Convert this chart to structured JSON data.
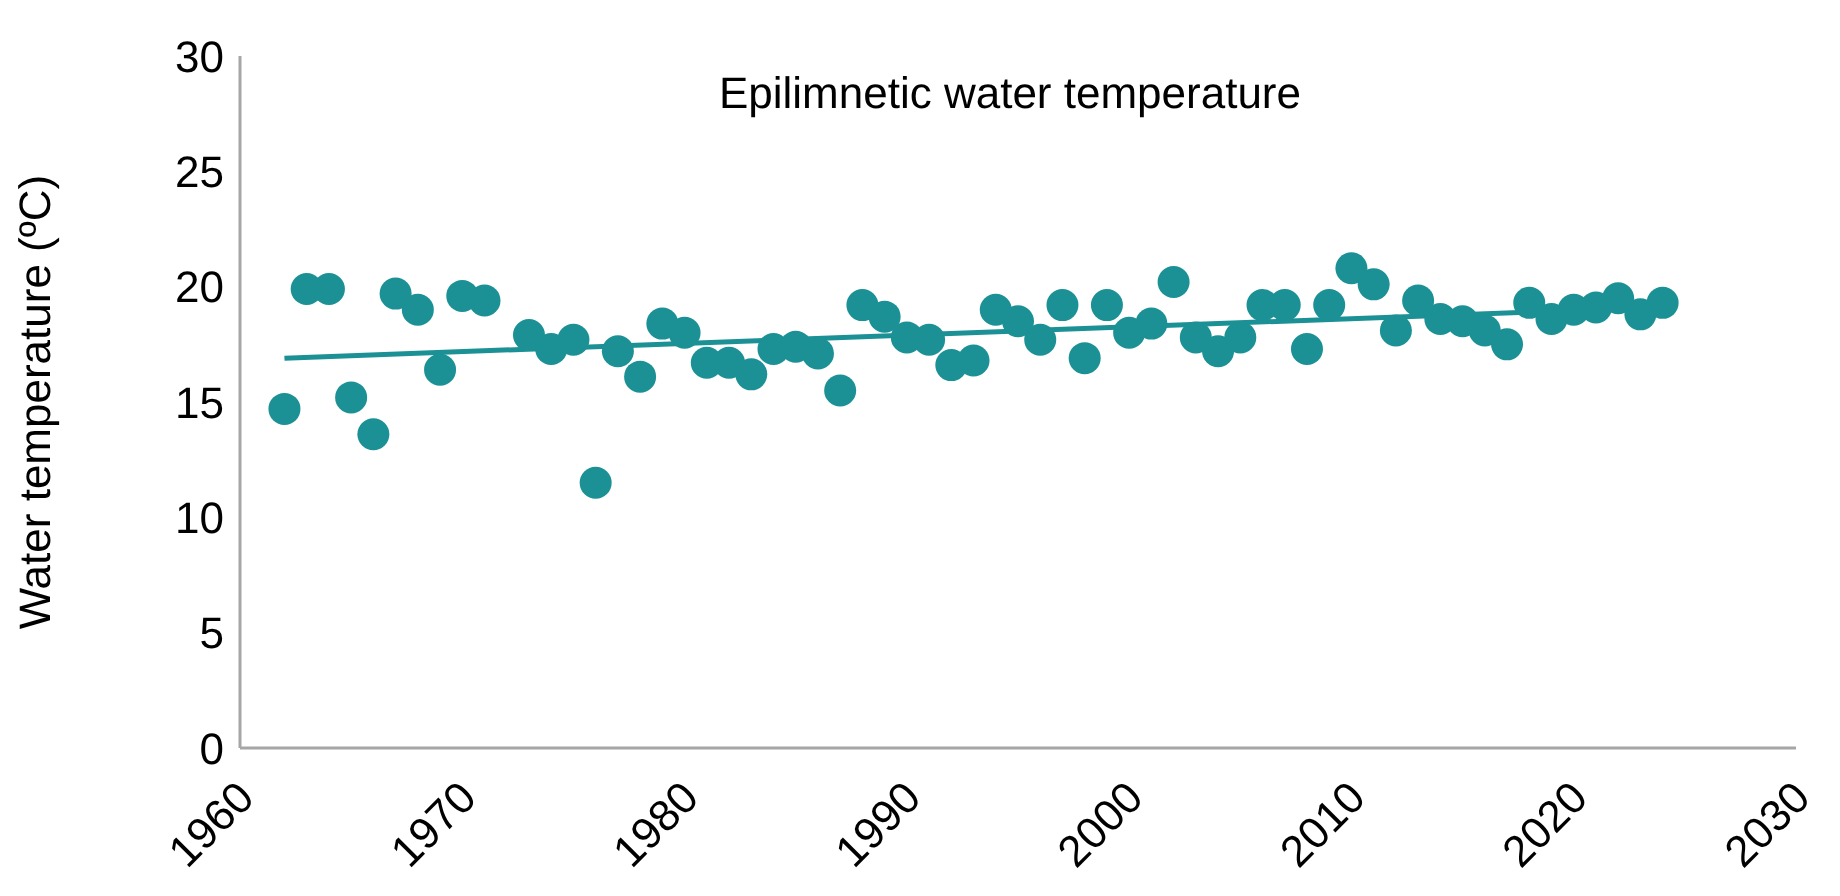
{
  "chart_data": {
    "type": "scatter",
    "title": "Epilimnetic water temperature",
    "ylabel": "Water temperature (ºC)",
    "xlim": [
      1960,
      2030
    ],
    "xticks": [
      1960,
      1970,
      1980,
      1990,
      2000,
      2010,
      2020,
      2030
    ],
    "ylim": [
      0,
      30
    ],
    "yticks": [
      0,
      5,
      10,
      15,
      20,
      25,
      30
    ],
    "grid": false,
    "legend": false,
    "marker": "circle",
    "series": [
      {
        "color": "#1b9196",
        "x": [
          1962,
          1963,
          1964,
          1965,
          1966,
          1967,
          1968,
          1969,
          1970,
          1971,
          1973,
          1974,
          1975,
          1976,
          1977,
          1978,
          1979,
          1980,
          1981,
          1982,
          1983,
          1984,
          1985,
          1986,
          1987,
          1988,
          1989,
          1990,
          1991,
          1992,
          1993,
          1994,
          1995,
          1996,
          1997,
          1998,
          1999,
          2000,
          2001,
          2002,
          2003,
          2004,
          2005,
          2006,
          2007,
          2008,
          2009,
          2010,
          2011,
          2012,
          2013,
          2014,
          2015,
          2016,
          2017,
          2018,
          2019,
          2020,
          2021,
          2022,
          2023,
          2024
        ],
        "values": [
          14.7,
          19.9,
          19.9,
          15.2,
          13.6,
          19.7,
          19.0,
          16.4,
          19.6,
          19.4,
          17.9,
          17.3,
          17.7,
          11.5,
          17.2,
          16.1,
          18.4,
          18.0,
          16.7,
          16.7,
          16.2,
          17.3,
          17.4,
          17.1,
          15.5,
          19.2,
          18.7,
          17.8,
          17.7,
          16.6,
          16.8,
          19.0,
          18.5,
          17.7,
          19.2,
          16.9,
          19.2,
          18.0,
          18.4,
          20.2,
          17.8,
          17.2,
          17.8,
          19.2,
          19.2,
          17.3,
          19.2,
          20.8,
          20.1,
          18.1,
          19.4,
          18.6,
          18.5,
          18.1,
          17.5,
          19.3,
          18.6,
          19.0,
          19.1,
          19.5,
          18.8,
          19.3
        ]
      },
      {
        "type": "line",
        "color": "#1b9196",
        "marker": "none",
        "line_style": "solid",
        "x": [
          1962,
          2018
        ],
        "values": [
          16.9,
          18.9
        ]
      }
    ]
  }
}
